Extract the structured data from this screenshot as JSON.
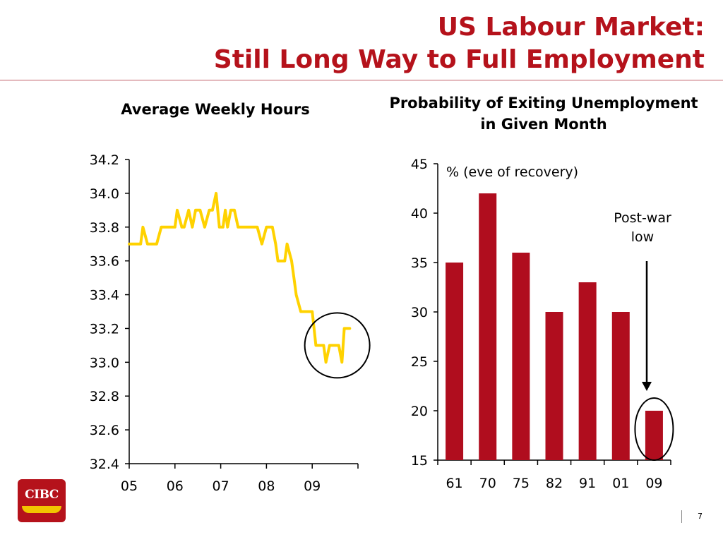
{
  "header": {
    "title_line1": "US Labour Market:",
    "title_line2": "Still Long Way to Full Employment"
  },
  "brand": {
    "logo_text": "CIBC",
    "accent_color": "#b5121b",
    "logo_stripe_color": "#f2c400"
  },
  "footer": {
    "page_number": "7"
  },
  "chart_data": [
    {
      "type": "line",
      "title": "Average Weekly Hours",
      "xlabel": "",
      "ylabel": "",
      "ylim": [
        32.4,
        34.2
      ],
      "yticks": [
        32.4,
        32.6,
        32.8,
        33.0,
        33.2,
        33.4,
        33.6,
        33.8,
        34.0,
        34.2
      ],
      "ytick_labels": [
        "32.4",
        "32.6",
        "32.8",
        "33.0",
        "33.2",
        "33.4",
        "33.6",
        "33.8",
        "34.0",
        "34.2"
      ],
      "xlim": [
        2005,
        2010
      ],
      "xticks": [
        2005,
        2006,
        2007,
        2008,
        2009,
        2010
      ],
      "xtick_labels": [
        "05",
        "06",
        "07",
        "08",
        "09",
        ""
      ],
      "line_color": "#ffd200",
      "annotation": "circle around latest readings (2009)",
      "series": [
        {
          "x": [
            2005.0,
            2005.25,
            2005.3,
            2005.4,
            2005.6,
            2005.7,
            2005.95,
            2006.0,
            2006.05,
            2006.15,
            2006.2,
            2006.3,
            2006.38,
            2006.45,
            2006.55,
            2006.65,
            2006.75,
            2006.82,
            2006.9,
            2006.97,
            2007.0,
            2007.05,
            2007.1,
            2007.15,
            2007.22,
            2007.3,
            2007.38,
            2007.45,
            2007.5,
            2007.6,
            2007.7,
            2007.8,
            2007.9,
            2008.0,
            2008.08,
            2008.13,
            2008.2,
            2008.25,
            2008.3,
            2008.4,
            2008.45,
            2008.55,
            2008.6,
            2008.65,
            2008.75,
            2008.8,
            2008.9,
            2009.0,
            2009.08,
            2009.15,
            2009.25,
            2009.3,
            2009.38,
            2009.45,
            2009.5,
            2009.58,
            2009.65,
            2009.7,
            2009.75,
            2009.82
          ],
          "values": [
            33.7,
            33.7,
            33.8,
            33.7,
            33.7,
            33.8,
            33.8,
            33.8,
            33.9,
            33.8,
            33.8,
            33.9,
            33.8,
            33.9,
            33.9,
            33.8,
            33.9,
            33.9,
            34.0,
            33.8,
            33.8,
            33.8,
            33.9,
            33.8,
            33.9,
            33.9,
            33.8,
            33.8,
            33.8,
            33.8,
            33.8,
            33.8,
            33.7,
            33.8,
            33.8,
            33.8,
            33.7,
            33.6,
            33.6,
            33.6,
            33.7,
            33.6,
            33.5,
            33.4,
            33.3,
            33.3,
            33.3,
            33.3,
            33.1,
            33.1,
            33.1,
            33.0,
            33.1,
            33.1,
            33.1,
            33.1,
            33.0,
            33.2,
            33.2,
            33.2
          ]
        }
      ]
    },
    {
      "type": "bar",
      "title": "Probability of Exiting Unemployment in Given Month",
      "annotation": "% (eve of recovery)",
      "callout": "Post-war low",
      "xlabel": "",
      "ylabel": "",
      "ylim": [
        15,
        45
      ],
      "yticks": [
        15,
        20,
        25,
        30,
        35,
        40,
        45
      ],
      "ytick_labels": [
        "15",
        "20",
        "25",
        "30",
        "35",
        "40",
        "45"
      ],
      "bar_color": "#b00d1e",
      "categories": [
        "61",
        "70",
        "75",
        "82",
        "91",
        "01",
        "09"
      ],
      "values": [
        35,
        42,
        36,
        30,
        33,
        30,
        20
      ]
    }
  ]
}
